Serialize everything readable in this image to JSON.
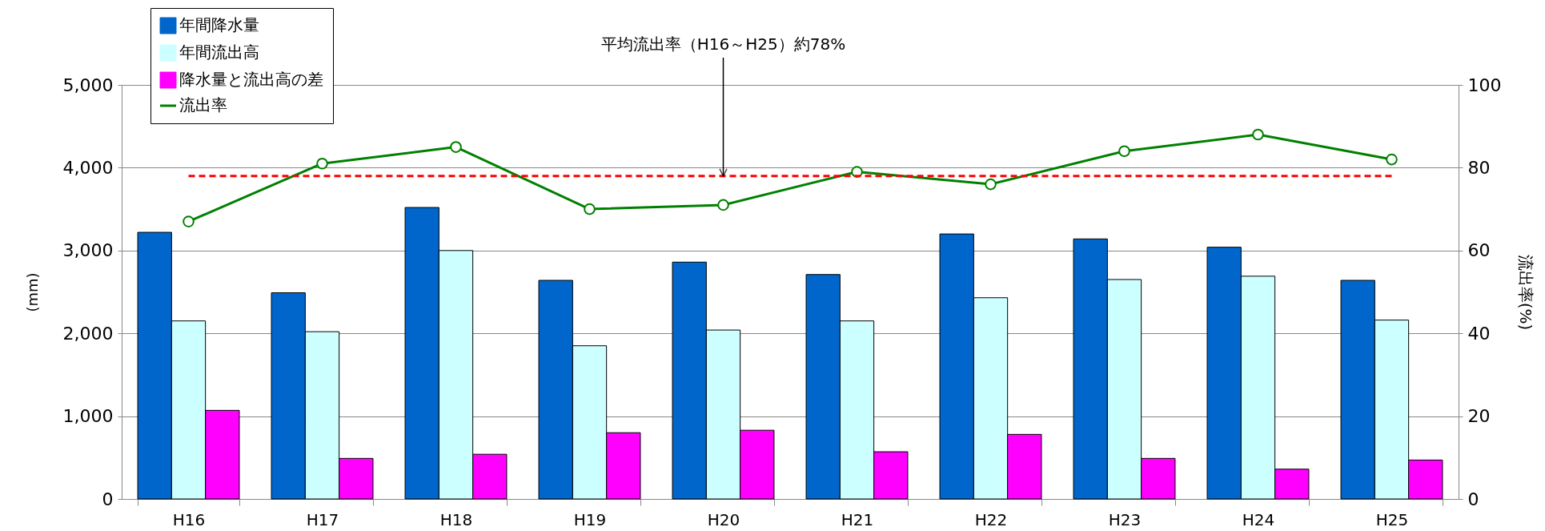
{
  "chart_data": {
    "type": "bar",
    "categories": [
      "H16",
      "H17",
      "H18",
      "H19",
      "H20",
      "H21",
      "H22",
      "H23",
      "H24",
      "H25"
    ],
    "series": [
      {
        "name": "年間降水量",
        "color": "#0066cc",
        "values": [
          3220,
          2490,
          3520,
          2640,
          2860,
          2710,
          3200,
          3140,
          3040,
          2640
        ]
      },
      {
        "name": "年間流出高",
        "color": "#ccffff",
        "values": [
          2150,
          2020,
          3000,
          1850,
          2040,
          2150,
          2430,
          2650,
          2690,
          2160
        ]
      },
      {
        "name": "降水量と流出高の差",
        "color": "#ff00ff",
        "values": [
          1070,
          490,
          540,
          800,
          830,
          570,
          780,
          490,
          360,
          470
        ]
      },
      {
        "name": "流出率",
        "type": "line",
        "axis": "y2",
        "color": "#008000",
        "marker": "circle",
        "values": [
          67,
          81,
          85,
          70,
          71,
          79,
          76,
          84,
          88,
          82
        ]
      }
    ],
    "ylabel": "(mm)",
    "y2label": "流出率(%)",
    "ylim": [
      0,
      5000
    ],
    "yticks": [
      0,
      {
        "value": 1000,
        "label": "1,000"
      },
      {
        "value": 2000,
        "label": "2,000"
      },
      {
        "value": 3000,
        "label": "3,000"
      },
      {
        "value": 4000,
        "label": "4,000"
      },
      {
        "value": 5000,
        "label": "5,000"
      }
    ],
    "y2lim": [
      0,
      100
    ],
    "y2ticks": [
      0,
      20,
      40,
      60,
      80,
      100
    ],
    "ref_lines": [
      {
        "axis": "y2",
        "value": 78,
        "color": "#ff0000",
        "line_style": "dashed",
        "label": "平均流出率（H16～H25）約78%"
      }
    ],
    "grid": "y",
    "legend": "top left"
  }
}
